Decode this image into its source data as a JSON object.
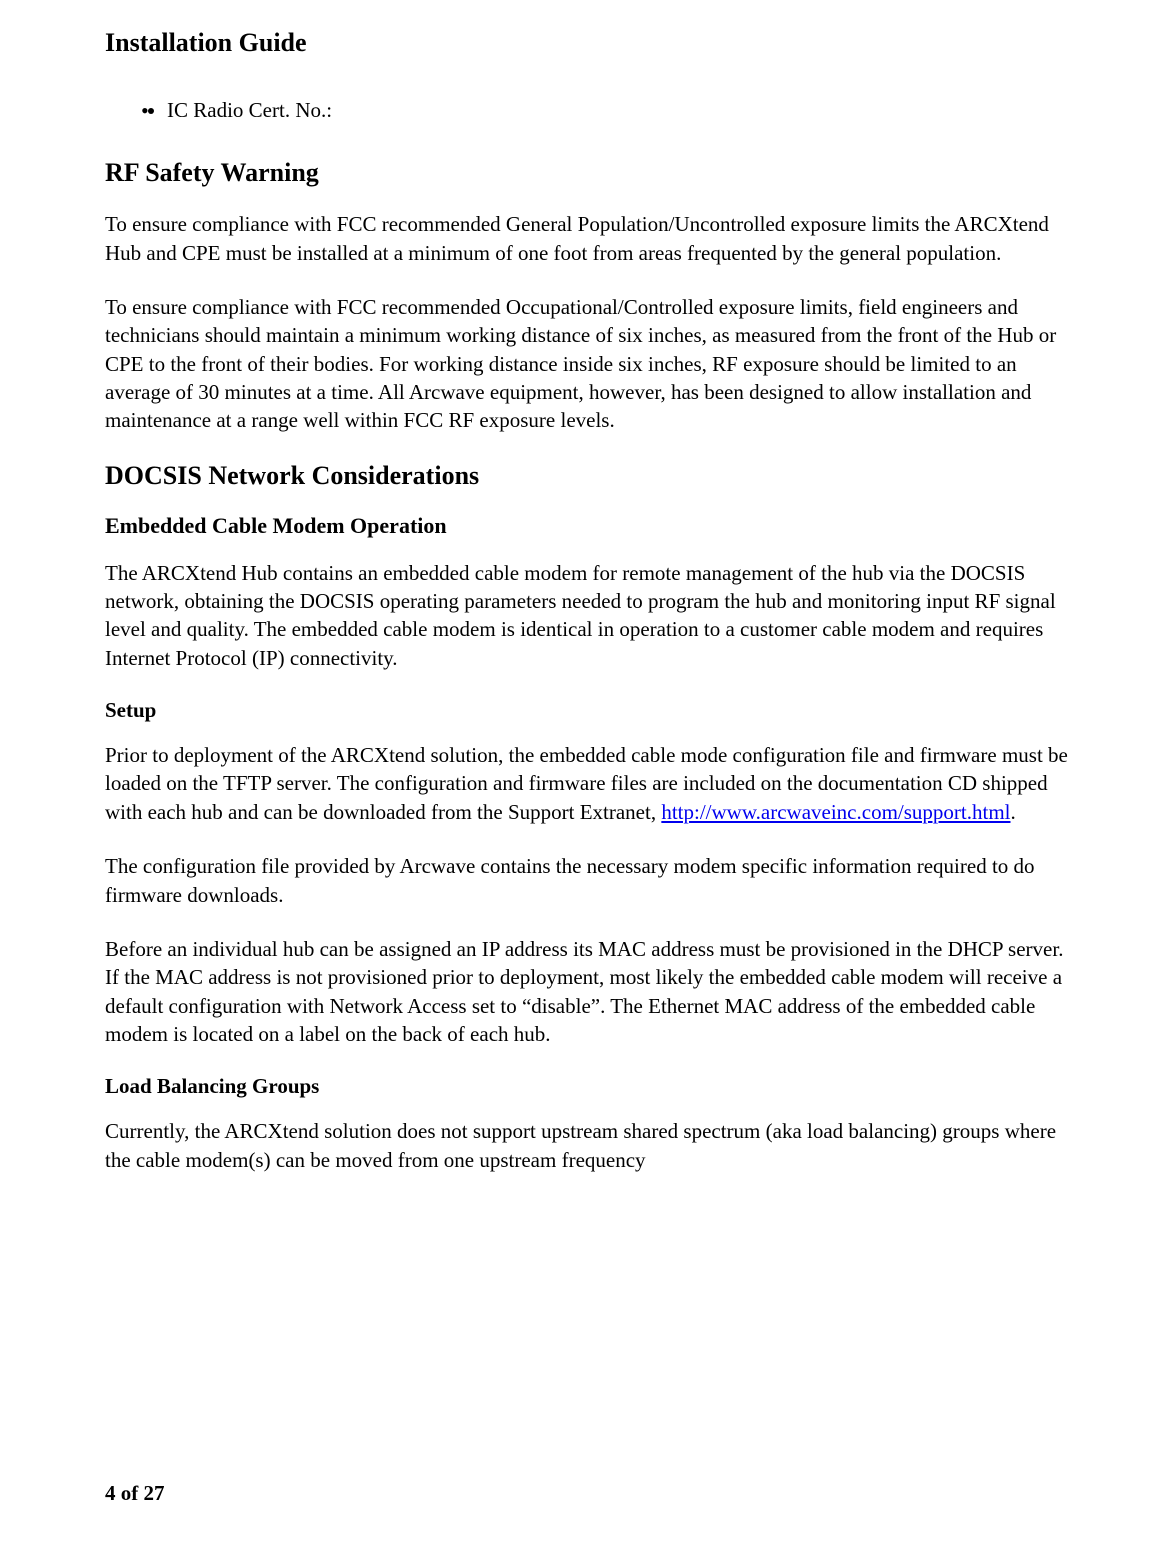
{
  "runningHead": "Installation Guide",
  "bullets": {
    "item1": "IC Radio Cert. No.:"
  },
  "sections": {
    "rfSafety": {
      "heading": "RF Safety Warning",
      "p1": "To ensure compliance with FCC recommended General Population/Uncontrolled exposure limits the ARCXtend Hub and CPE must be installed at a minimum of one foot from areas frequented by the general population.",
      "p2": "To ensure compliance with FCC recommended Occupational/Controlled exposure limits, field engineers and technicians should maintain a minimum working distance of six inches, as measured from the front of the Hub or CPE to the front of their bodies. For working distance inside six inches, RF exposure should be limited to an average of 30 minutes at a time. All Arcwave equipment, however, has been designed to allow installation and maintenance at a range well within FCC RF exposure levels."
    },
    "docsis": {
      "heading": "DOCSIS Network Considerations",
      "sub1": {
        "heading": "Embedded Cable Modem Operation",
        "p1": "The ARCXtend Hub contains an embedded cable modem for remote management of the hub via the DOCSIS network, obtaining the DOCSIS operating parameters needed to program the hub and monitoring input RF signal level and quality. The embedded cable modem is identical in operation to a customer cable modem and requires Internet Protocol (IP) connectivity."
      },
      "sub2": {
        "heading": "Setup",
        "p1_pre": "Prior to deployment of the ARCXtend solution, the embedded cable mode configuration file and firmware must be loaded on the TFTP server. The configuration and firmware files are included on the documentation CD shipped with each hub and can be downloaded from the Support Extranet, ",
        "p1_link": "http://www.arcwaveinc.com/support.html",
        "p1_post": ".",
        "p2": "The configuration file provided by Arcwave contains the necessary modem specific information required to do firmware downloads.",
        "p3": "Before an individual hub can be assigned an IP address its MAC address must be provisioned in the DHCP server. If the MAC address is not provisioned prior to deployment, most likely the embedded cable modem will receive a default configuration with Network Access set to “disable”. The Ethernet MAC address of the embedded cable modem is located on a label on the back of each hub."
      },
      "sub3": {
        "heading": "Load Balancing Groups",
        "p1": "Currently, the ARCXtend solution does not support upstream shared spectrum (aka load balancing) groups where the cable modem(s) can be moved from one upstream frequency"
      }
    }
  },
  "footer": "4 of 27",
  "colors": {
    "link": "#0000ee",
    "text": "#000000",
    "background": "#ffffff"
  },
  "typography": {
    "bodyFontFamily": "Times New Roman",
    "bodyFontSizePx": 21,
    "h2FontSizePx": 26,
    "h3FontSizePx": 22,
    "h4FontSizePx": 21,
    "runningHeadFontSizePx": 26,
    "lineHeight": 1.35
  }
}
